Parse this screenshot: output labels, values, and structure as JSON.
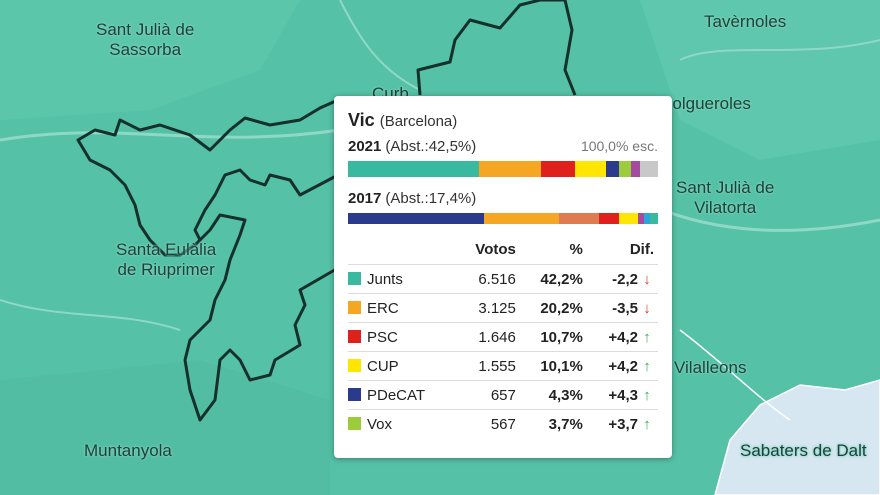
{
  "map": {
    "colors": {
      "water_bg": "#55c1a6",
      "border": "#16302b",
      "roads": "#8fd8c6",
      "light_area": "#d6e7f1"
    },
    "places": [
      {
        "id": "sant-julia-de-sassorba",
        "line1": "Sant Julià de",
        "line2": "Sassorba"
      },
      {
        "id": "tavernoles",
        "line1": "Tavèrnoles",
        "line2": ""
      },
      {
        "id": "curb",
        "line1": "Curb",
        "line2": ""
      },
      {
        "id": "folgueroles",
        "line1": "Folgueroles",
        "line2": ""
      },
      {
        "id": "sant-julia-de-vilatorta",
        "line1": "Sant Julià de",
        "line2": "Vilatorta"
      },
      {
        "id": "santa-eulalia-de-riuprimer",
        "line1": "Santa Eulàlia",
        "line2": "de Riuprimer"
      },
      {
        "id": "vilalleons",
        "line1": "Vilalleons",
        "line2": ""
      },
      {
        "id": "muntanyola",
        "line1": "Muntanyola",
        "line2": ""
      },
      {
        "id": "sabaters-de-dalt",
        "line1": "Sabaters de Dalt",
        "line2": ""
      }
    ]
  },
  "card": {
    "municipality": "Vic",
    "province": "(Barcelona)",
    "current": {
      "year": "2021",
      "abstention": "(Abst.:42,5%)",
      "scrutiny": "100,0% esc."
    },
    "previous": {
      "year": "2017",
      "abstention": "(Abst.:17,4%)"
    },
    "bar_2021": [
      {
        "color": "#3ab9a1",
        "share": 42.2
      },
      {
        "color": "#f5a623",
        "share": 20.2
      },
      {
        "color": "#e0201b",
        "share": 10.7
      },
      {
        "color": "#ffe600",
        "share": 10.1
      },
      {
        "color": "#2a3a8c",
        "share": 4.3
      },
      {
        "color": "#9ccc3c",
        "share": 3.7
      },
      {
        "color": "#a54a9e",
        "share": 3.0
      },
      {
        "color": "#c8c8c8",
        "share": 5.8
      }
    ],
    "bar_2017": [
      {
        "color": "#2a3a8c",
        "share": 44.0
      },
      {
        "color": "#f5a623",
        "share": 24.0
      },
      {
        "color": "#e07b50",
        "share": 13.0
      },
      {
        "color": "#e0201b",
        "share": 6.5
      },
      {
        "color": "#ffe600",
        "share": 5.9
      },
      {
        "color": "#a54a9e",
        "share": 2.0
      },
      {
        "color": "#2aa7d8",
        "share": 2.0
      },
      {
        "color": "#3ab9a1",
        "share": 2.6
      }
    ],
    "table": {
      "headers": {
        "votes": "Votos",
        "pct": "%",
        "diff": "Dif."
      },
      "rows": [
        {
          "party": "Junts",
          "color": "#3ab9a1",
          "votes": "6.516",
          "pct": "42,2%",
          "diff": "-2,2",
          "trend": "down"
        },
        {
          "party": "ERC",
          "color": "#f5a623",
          "votes": "3.125",
          "pct": "20,2%",
          "diff": "-3,5",
          "trend": "down"
        },
        {
          "party": "PSC",
          "color": "#e0201b",
          "votes": "1.646",
          "pct": "10,7%",
          "diff": "+4,2",
          "trend": "up"
        },
        {
          "party": "CUP",
          "color": "#ffe600",
          "votes": "1.555",
          "pct": "10,1%",
          "diff": "+4,2",
          "trend": "up"
        },
        {
          "party": "PDeCAT",
          "color": "#2a3a8c",
          "votes": "657",
          "pct": "4,3%",
          "diff": "+4,3",
          "trend": "up"
        },
        {
          "party": "Vox",
          "color": "#9ccc3c",
          "votes": "567",
          "pct": "3,7%",
          "diff": "+3,7",
          "trend": "up"
        }
      ]
    }
  }
}
